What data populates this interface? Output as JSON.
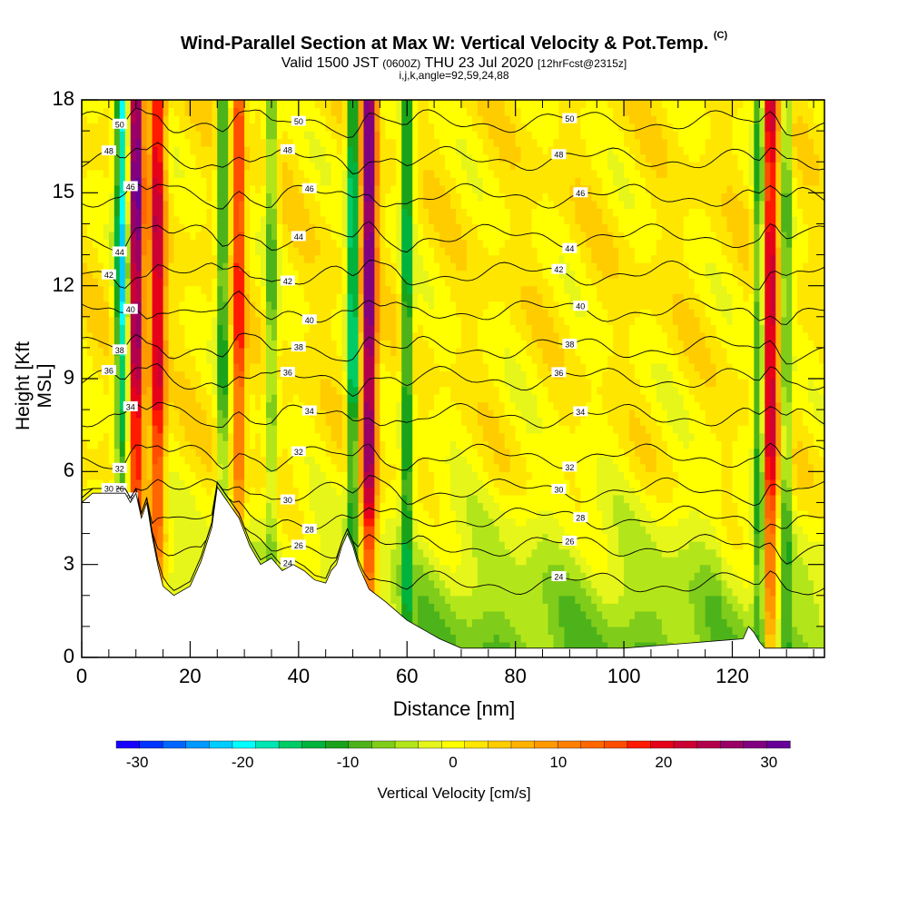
{
  "title": {
    "main": "Wind-Parallel Section at Max W: Vertical Velocity & Pot.Temp.",
    "units": "(C)",
    "valid_prefix": "Valid 1500 JST",
    "valid_utc": "(0600Z)",
    "valid_date": "THU 23 Jul 2020",
    "forecast": "[12hrFcst@2315z]",
    "indices": "i,j,k,angle=92,59,24,88"
  },
  "chart_data": {
    "type": "contour",
    "xlabel": "Distance [nm]",
    "ylabel": "Height [Kft MSL]",
    "xlim": [
      0,
      137
    ],
    "ylim": [
      0,
      18
    ],
    "x_ticks": [
      "0",
      "20",
      "40",
      "60",
      "80",
      "100",
      "120"
    ],
    "y_ticks": [
      "0",
      "3",
      "6",
      "9",
      "12",
      "15",
      "18"
    ],
    "colorbar": {
      "label": "Vertical Velocity [cm/s]",
      "ticks": [
        "-30",
        "-20",
        "-10",
        "0",
        "10",
        "20",
        "30"
      ],
      "range": [
        -32,
        32
      ],
      "colors": [
        "#1a00ff",
        "#0033ff",
        "#0066ff",
        "#0099ff",
        "#00ccff",
        "#00ffff",
        "#00e6b3",
        "#00cc66",
        "#00b33c",
        "#1aa31a",
        "#4db31a",
        "#80cc1a",
        "#b3e61a",
        "#e6f51a",
        "#ffff00",
        "#ffe600",
        "#ffcc00",
        "#ffb300",
        "#ff9900",
        "#ff8000",
        "#ff6600",
        "#ff4d00",
        "#ff1a00",
        "#e6001a",
        "#cc0033",
        "#b3004d",
        "#990066",
        "#800080",
        "#660099"
      ]
    },
    "updraft_cores": [
      {
        "x": 10,
        "w": 30
      },
      {
        "x": 14,
        "w": 22
      },
      {
        "x": 29,
        "w": 18
      },
      {
        "x": 53,
        "w": 30
      },
      {
        "x": 127,
        "w": 22
      }
    ],
    "downdraft_cores": [
      {
        "x": 7.5,
        "w": -22
      },
      {
        "x": 26,
        "w": -14
      },
      {
        "x": 35,
        "w": -10
      },
      {
        "x": 50,
        "w": -20
      },
      {
        "x": 60,
        "w": -16
      },
      {
        "x": 125,
        "w": -14
      },
      {
        "x": 130,
        "w": -10
      }
    ],
    "isentropes": {
      "labels": [
        "24",
        "26",
        "28",
        "30",
        "32",
        "34",
        "36",
        "38",
        "40",
        "42",
        "44",
        "46",
        "48",
        "50"
      ],
      "heights": [
        2.4,
        3.6,
        4.5,
        5.4,
        6.5,
        7.8,
        9.0,
        10.0,
        11.2,
        12.4,
        13.6,
        14.9,
        16.1,
        17.3
      ]
    },
    "terrain": {
      "x": [
        0,
        2,
        8,
        9,
        10,
        11,
        12,
        13,
        14,
        15,
        17,
        20,
        22,
        24,
        25,
        27,
        29,
        31,
        33,
        35,
        37,
        39,
        41,
        43,
        45,
        46,
        47,
        48,
        49,
        50,
        51,
        53,
        56,
        58,
        60,
        62,
        64,
        66,
        70,
        100,
        122,
        123,
        124,
        125,
        126,
        137
      ],
      "h": [
        5.0,
        5.3,
        5.3,
        5.0,
        5.3,
        4.5,
        5.0,
        3.9,
        3.0,
        2.3,
        2.0,
        2.3,
        3.1,
        4.2,
        5.5,
        5.0,
        4.5,
        3.6,
        3.0,
        3.2,
        2.8,
        3.0,
        2.8,
        2.5,
        2.4,
        2.8,
        3.0,
        3.6,
        4.0,
        3.6,
        3.0,
        2.2,
        1.8,
        1.5,
        1.2,
        1.0,
        0.8,
        0.6,
        0.3,
        0.3,
        0.6,
        1.0,
        0.8,
        0.5,
        0.3,
        0.3
      ]
    }
  }
}
